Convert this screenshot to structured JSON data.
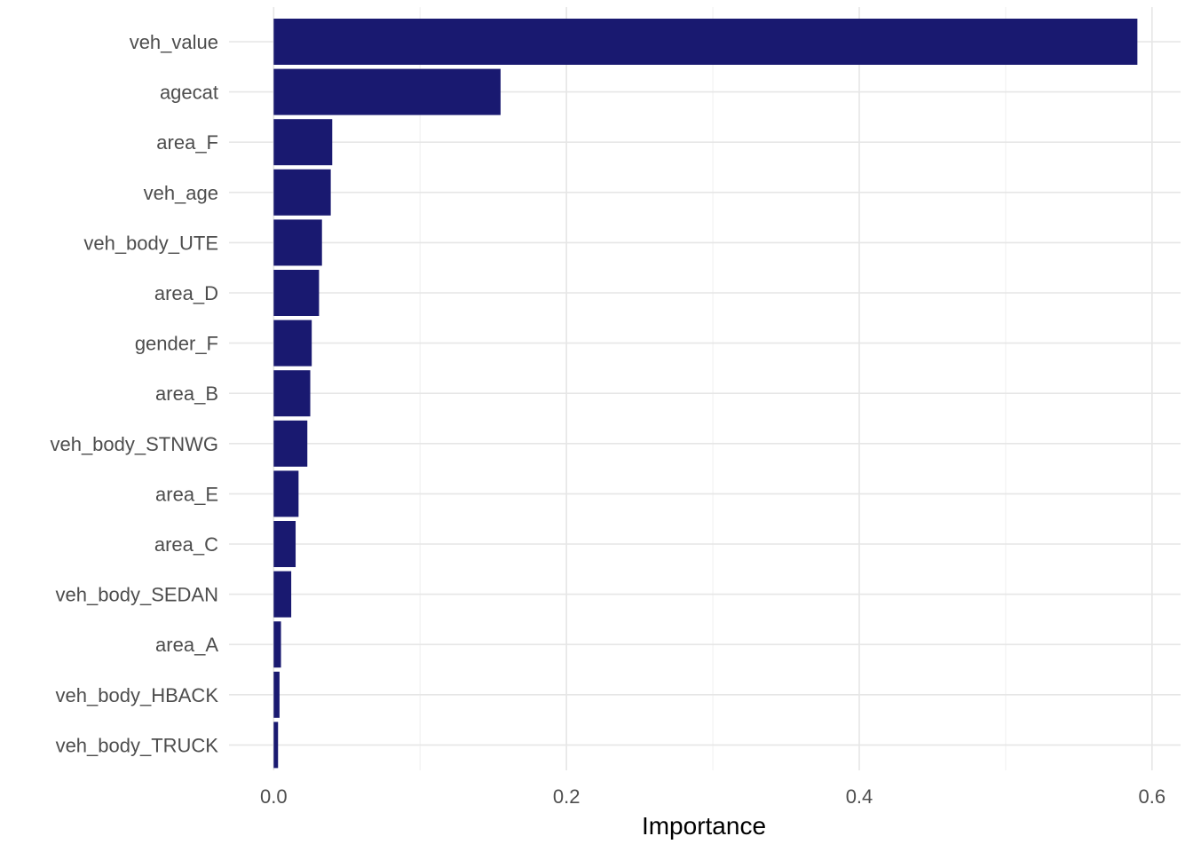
{
  "chart_data": {
    "type": "bar",
    "orientation": "horizontal",
    "categories": [
      "veh_value",
      "agecat",
      "area_F",
      "veh_age",
      "veh_body_UTE",
      "area_D",
      "gender_F",
      "area_B",
      "veh_body_STNWG",
      "area_E",
      "area_C",
      "veh_body_SEDAN",
      "area_A",
      "veh_body_HBACK",
      "veh_body_TRUCK"
    ],
    "values": [
      0.59,
      0.155,
      0.04,
      0.039,
      0.033,
      0.031,
      0.026,
      0.025,
      0.023,
      0.017,
      0.015,
      0.012,
      0.005,
      0.004,
      0.003
    ],
    "xlabel": "Importance",
    "ylabel": "",
    "xlim": [
      -0.0305,
      0.6195
    ],
    "x_ticks": [
      0.0,
      0.2,
      0.4,
      0.6
    ],
    "x_tick_labels": [
      "0.0",
      "0.2",
      "0.4",
      "0.6"
    ],
    "grid": true,
    "legend": "none",
    "bar_color": "#191970"
  }
}
